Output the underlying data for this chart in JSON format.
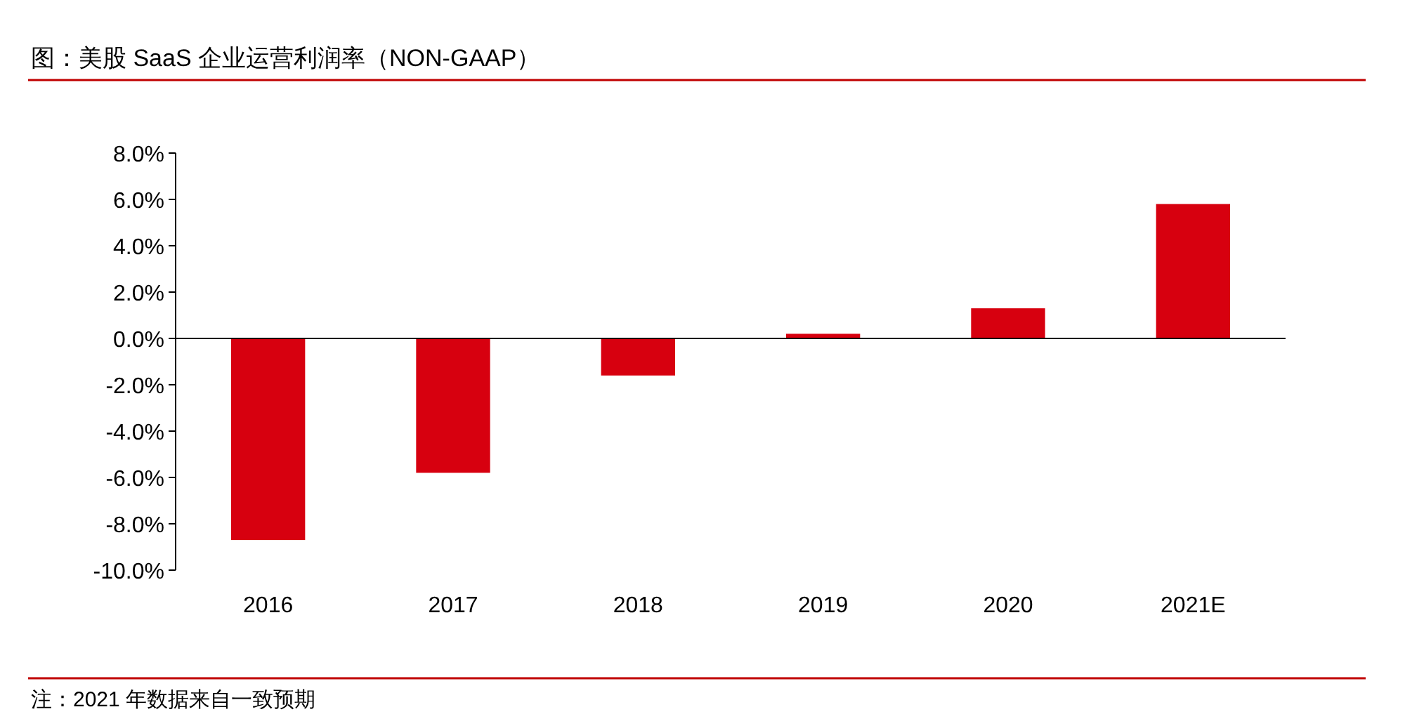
{
  "chart_data": {
    "type": "bar",
    "title": "图：美股 SaaS 企业运营利润率（NON-GAAP）",
    "categories": [
      "2016",
      "2017",
      "2018",
      "2019",
      "2020",
      "2021E"
    ],
    "values": [
      -8.7,
      -5.8,
      -1.6,
      0.2,
      1.3,
      5.8
    ],
    "color": "#d7000f",
    "ylim": [
      -10,
      8
    ],
    "yticks": [
      {
        "value": -10,
        "label": "-10.0%"
      },
      {
        "value": -8,
        "label": "-8.0%"
      },
      {
        "value": -6,
        "label": "-6.0%"
      },
      {
        "value": -4,
        "label": "-4.0%"
      },
      {
        "value": -2,
        "label": "-2.0%"
      },
      {
        "value": 0,
        "label": "0.0%"
      },
      {
        "value": 2,
        "label": "2.0%"
      },
      {
        "value": 4,
        "label": "4.0%"
      },
      {
        "value": 6,
        "label": "6.0%"
      },
      {
        "value": 8,
        "label": "8.0%"
      }
    ],
    "annotations": [
      "注：2021 年数据来自一致预期"
    ]
  }
}
